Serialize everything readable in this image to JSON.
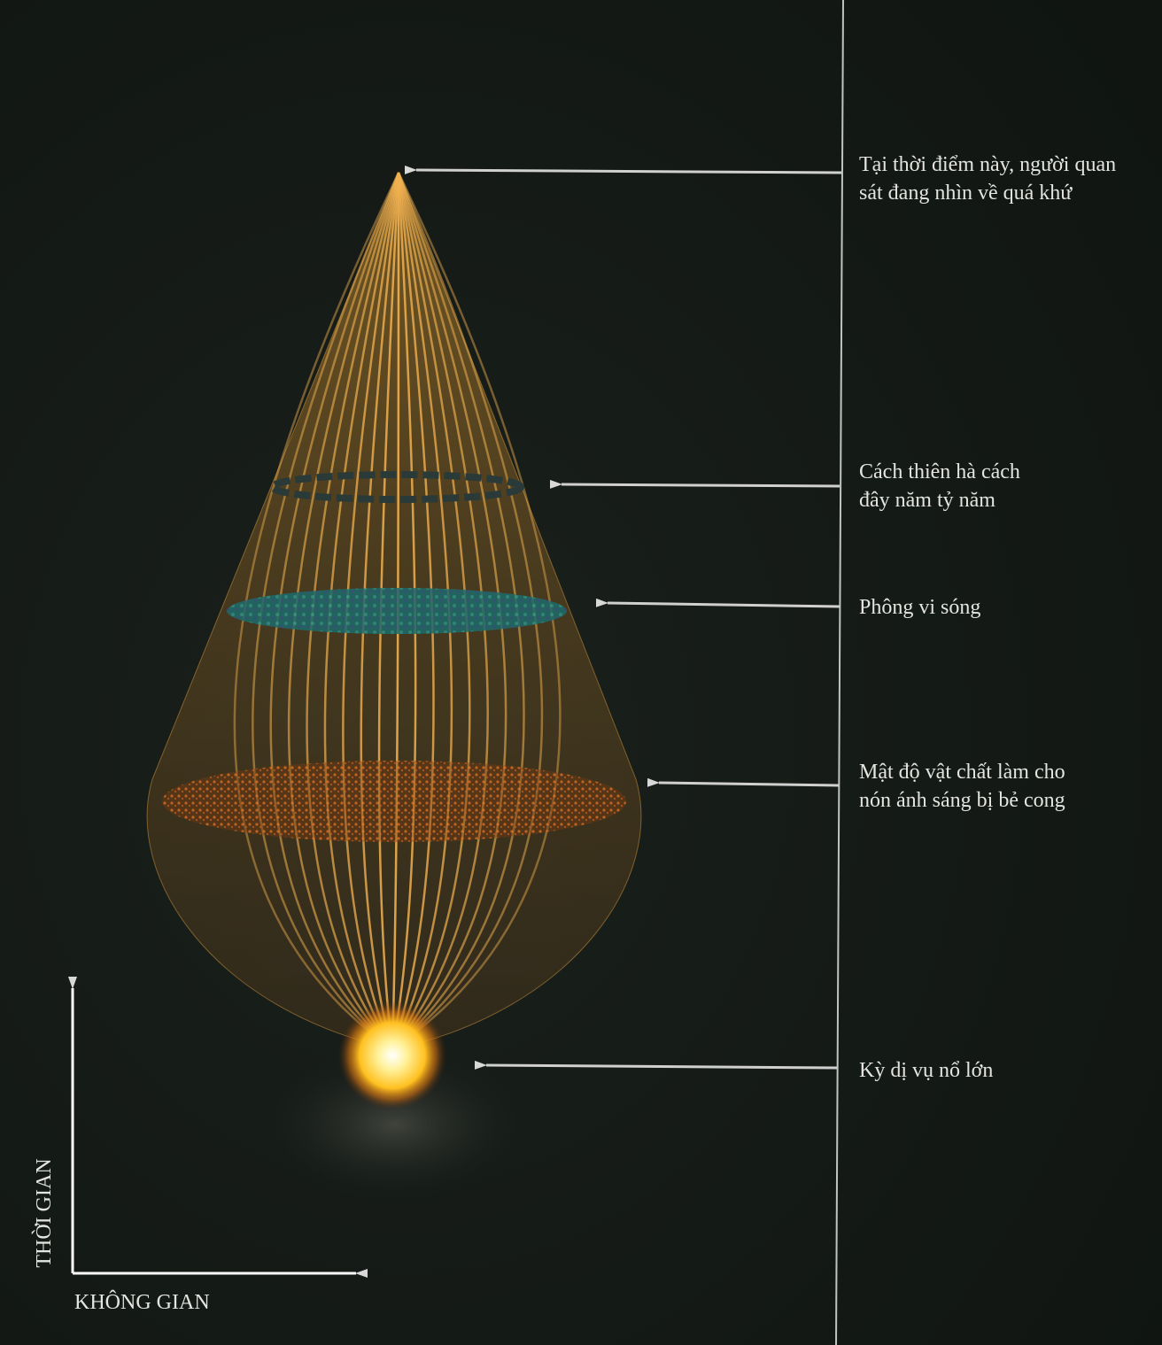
{
  "annotations": [
    {
      "lines": [
        "Tại thời điểm này, người quan",
        "sát đang nhìn về quá khứ"
      ]
    },
    {
      "lines": [
        "Cách thiên hà cách",
        "đây năm tỷ năm"
      ]
    },
    {
      "lines": [
        "Phông vi sóng"
      ]
    },
    {
      "lines": [
        "Mật độ vật chất làm cho",
        "nón ánh sáng bị bẻ cong"
      ]
    },
    {
      "lines": [
        "Kỳ dị vụ nổ lớn"
      ]
    }
  ],
  "axes": {
    "y_label": "THỜI GIAN",
    "x_label": "KHÔNG GIAN"
  }
}
